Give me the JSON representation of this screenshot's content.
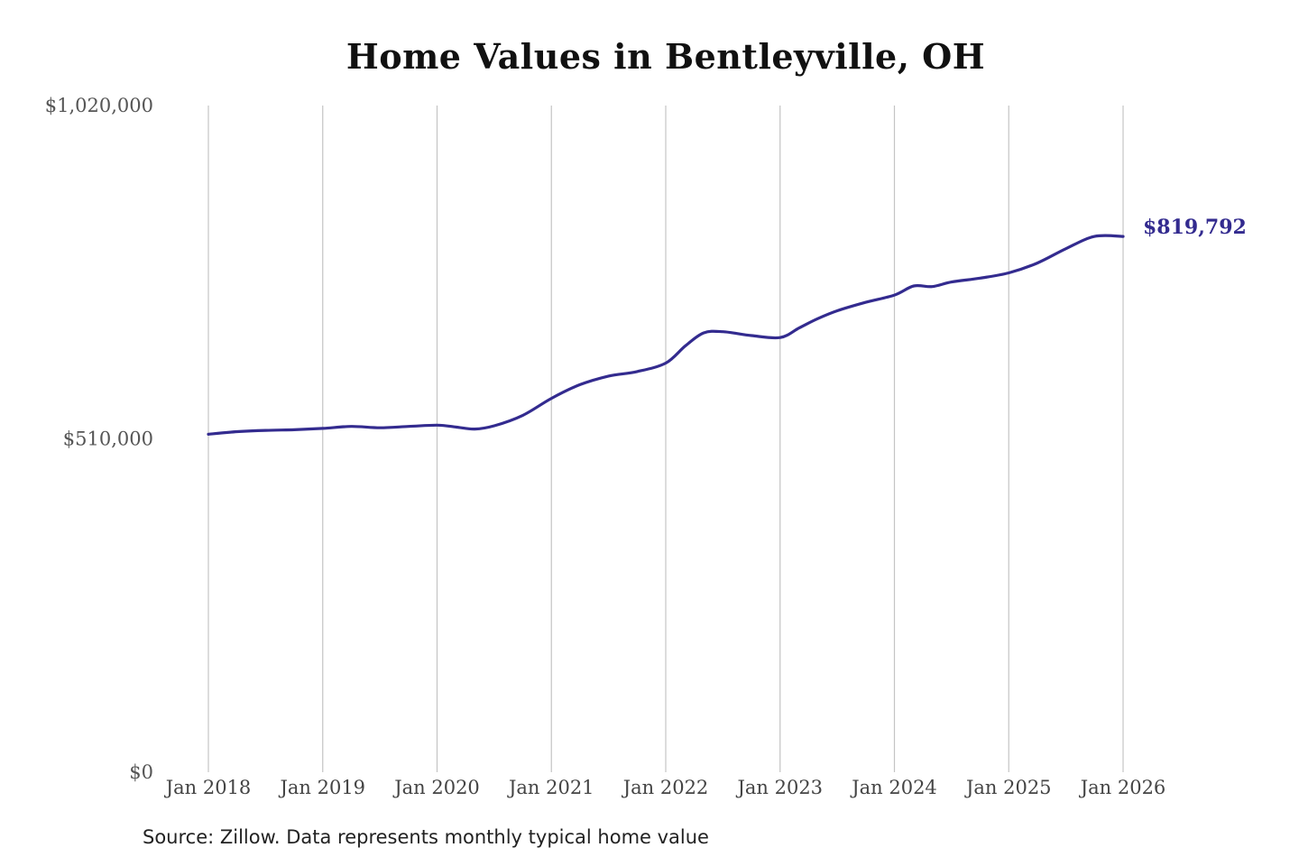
{
  "chart_data": {
    "type": "line",
    "title": "Home Values in Bentleyville, OH",
    "source": "Source: Zillow. Data represents monthly typical home value",
    "xlabel": "",
    "ylabel": "",
    "ylim": [
      0,
      1020000
    ],
    "y_ticks": [
      {
        "value": 0,
        "label": "$0"
      },
      {
        "value": 510000,
        "label": "$510,000"
      },
      {
        "value": 1020000,
        "label": "$1,020,000"
      }
    ],
    "x_ticks": [
      {
        "value": 2018,
        "label": "Jan 2018"
      },
      {
        "value": 2019,
        "label": "Jan 2019"
      },
      {
        "value": 2020,
        "label": "Jan 2020"
      },
      {
        "value": 2021,
        "label": "Jan 2021"
      },
      {
        "value": 2022,
        "label": "Jan 2022"
      },
      {
        "value": 2023,
        "label": "Jan 2023"
      },
      {
        "value": 2024,
        "label": "Jan 2024"
      },
      {
        "value": 2025,
        "label": "Jan 2025"
      },
      {
        "value": 2026,
        "label": "Jan 2026"
      }
    ],
    "xlim": [
      2018,
      2026
    ],
    "grid": "vertical",
    "line_color": "#332b8f",
    "end_label": "$819,792",
    "series": [
      {
        "name": "",
        "x": [
          2018.0,
          2018.25,
          2018.5,
          2018.75,
          2019.0,
          2019.25,
          2019.5,
          2019.75,
          2020.0,
          2020.17,
          2020.33,
          2020.5,
          2020.75,
          2021.0,
          2021.25,
          2021.5,
          2021.75,
          2022.0,
          2022.17,
          2022.33,
          2022.5,
          2022.75,
          2023.0,
          2023.17,
          2023.33,
          2023.5,
          2023.75,
          2024.0,
          2024.17,
          2024.33,
          2024.5,
          2024.75,
          2025.0,
          2025.25,
          2025.5,
          2025.75,
          2026.0
        ],
        "y": [
          517000,
          521000,
          523000,
          524000,
          526000,
          529000,
          527000,
          529000,
          531000,
          528000,
          525000,
          530000,
          546000,
          572000,
          593000,
          606000,
          613000,
          626000,
          652000,
          672000,
          674000,
          668000,
          665000,
          680000,
          694000,
          706000,
          719000,
          730000,
          744000,
          743000,
          750000,
          756000,
          764000,
          779000,
          801000,
          819792,
          819792
        ]
      }
    ]
  }
}
